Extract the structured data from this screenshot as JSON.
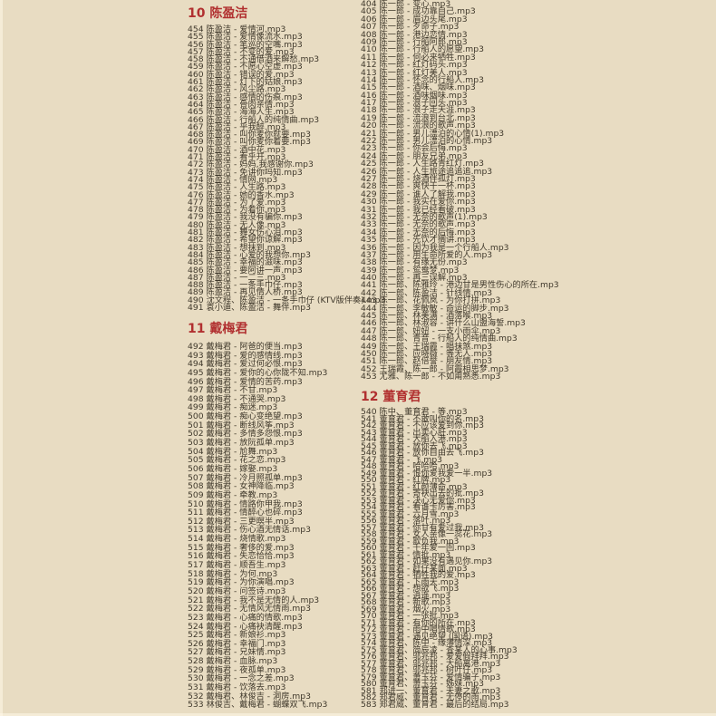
{
  "page": {
    "background": "#e8dcc2",
    "text_color": "#3f382b",
    "accent_color": "#b13030"
  },
  "sections": [
    {
      "id": "a",
      "header": {
        "number": "10",
        "title": "陈盈洁"
      },
      "items": [
        {
          "num": "454",
          "label": "陈盈洁 - 爱情河.mp3"
        },
        {
          "num": "455",
          "label": "陈盈洁 - 爱情像流水.mp3"
        },
        {
          "num": "456",
          "label": "陈盈洁 - 笔巡的空嘴.mp3"
        },
        {
          "num": "457",
          "label": "陈盈洁 - 不变的爱.mp3"
        },
        {
          "num": "458",
          "label": "陈盈洁 - 不通借酒来解愁.mp3"
        },
        {
          "num": "459",
          "label": "陈盈洁 - 不愿心空虚.mp3"
        },
        {
          "num": "460",
          "label": "陈盈洁 - 错误的爱.mp3"
        },
        {
          "num": "461",
          "label": "陈盈洁 - 灯下的姑娘.mp3"
        },
        {
          "num": "462",
          "label": "陈盈洁 - 风尘路.mp3"
        },
        {
          "num": "463",
          "label": "陈盈洁 - 感情的伤痕.mp3"
        },
        {
          "num": "464",
          "label": "陈盈洁 - 骨肉亲情.mp3"
        },
        {
          "num": "465",
          "label": "陈盈洁 - 海海人生.mp3"
        },
        {
          "num": "466",
          "label": "陈盈洁 - 行船人的纯情曲.mp3"
        },
        {
          "num": "467",
          "label": "陈盈洁 - 乎我醉.mp3"
        },
        {
          "num": "468",
          "label": "陈盈洁 - 叫你麦你就要.mp3"
        },
        {
          "num": "469",
          "label": "陈盈洁 - 叫你麦你着要.mp3"
        },
        {
          "num": "470",
          "label": "陈盈洁 - 酒中花.mp3"
        },
        {
          "num": "471",
          "label": "陈盈洁 - 看乎开.mp3"
        },
        {
          "num": "472",
          "label": "陈盈洁 - 妈妈,我感谢你.mp3"
        },
        {
          "num": "473",
          "label": "陈盈洁 - 免讲你吗知.mp3"
        },
        {
          "num": "474",
          "label": "陈盈洁 - 情网.mp3"
        },
        {
          "num": "475",
          "label": "陈盈洁 - 人生路.mp3"
        },
        {
          "num": "476",
          "label": "陈盈洁 - 她的香水.mp3"
        },
        {
          "num": "477",
          "label": "陈盈洁 - 为了爱.mp3"
        },
        {
          "num": "478",
          "label": "陈盈洁 - 为着你.mp3"
        },
        {
          "num": "479",
          "label": "陈盈洁 - 我没有骗你.mp3"
        },
        {
          "num": "480",
          "label": "陈盈洁 - 无人像.mp3"
        },
        {
          "num": "481",
          "label": "陈盈洁 - 舞女伤心泪.mp3"
        },
        {
          "num": "482",
          "label": "陈盈洁 - 希望你谅解.mp3"
        },
        {
          "num": "483",
          "label": "陈盈洁 - 想抹到.mp3"
        },
        {
          "num": "484",
          "label": "陈盈洁 - 心爱的我想你.mp3"
        },
        {
          "num": "485",
          "label": "陈盈洁 - 幸福的滋味.mp3"
        },
        {
          "num": "486",
          "label": "陈盈洁 - 要阿讲一声.mp3"
        },
        {
          "num": "487",
          "label": "陈盈洁 - 一二三.mp3"
        },
        {
          "num": "488",
          "label": "陈盈洁 - 一条手巾仔.mp3"
        },
        {
          "num": "489",
          "label": "陈盈洁 - 再见情人桥.mp3"
        },
        {
          "num": "490",
          "label": "沈文程、陈盈洁 - 一条手巾仔 (KTV版伴奏).mp3"
        },
        {
          "num": "491",
          "label": "袁小迪、陈盈洁 - 舞伴.mp3"
        }
      ]
    },
    {
      "id": "b",
      "header": {
        "number": "11",
        "title": "戴梅君"
      },
      "items": [
        {
          "num": "492",
          "label": "戴梅君 - 阿爸的便当.mp3"
        },
        {
          "num": "493",
          "label": "戴梅君 - 爱的感情线.mp3"
        },
        {
          "num": "494",
          "label": "戴梅君 - 爱过何必恨.mp3"
        },
        {
          "num": "495",
          "label": "戴梅君 - 爱你的心你陇不知.mp3"
        },
        {
          "num": "496",
          "label": "戴梅君 - 爱情的苦药.mp3"
        },
        {
          "num": "497",
          "label": "戴梅君 - 不甘.mp3"
        },
        {
          "num": "498",
          "label": "戴梅君 - 不通哭.mp3"
        },
        {
          "num": "499",
          "label": "戴梅君 - 痴迷.mp3"
        },
        {
          "num": "500",
          "label": "戴梅君 - 痴心变绝望.mp3"
        },
        {
          "num": "501",
          "label": "戴梅君 - 断线风筝.mp3"
        },
        {
          "num": "502",
          "label": "戴梅君 - 多情多怨恨.mp3"
        },
        {
          "num": "503",
          "label": "戴梅君 - 放阮孤单.mp3"
        },
        {
          "num": "504",
          "label": "戴梅君 - 尬舞.mp3"
        },
        {
          "num": "505",
          "label": "戴梅君 - 花之恋.mp3"
        },
        {
          "num": "506",
          "label": "戴梅君 - 嫁娶.mp3"
        },
        {
          "num": "507",
          "label": "戴梅君 - 冷月照孤单.mp3"
        },
        {
          "num": "508",
          "label": "戴梅君 - 女神降临.mp3"
        },
        {
          "num": "509",
          "label": "戴梅君 - 牵教.mp3"
        },
        {
          "num": "510",
          "label": "戴梅君 - 情路你甲我.mp3"
        },
        {
          "num": "511",
          "label": "戴梅君 - 情醉心也碎.mp3"
        },
        {
          "num": "512",
          "label": "戴梅君 - 三更暝半.mp3"
        },
        {
          "num": "513",
          "label": "戴梅君 - 伤心酒无情话.mp3"
        },
        {
          "num": "514",
          "label": "戴梅君 - 烧情歌.mp3"
        },
        {
          "num": "515",
          "label": "戴梅君 - 奢侈的爱.mp3"
        },
        {
          "num": "516",
          "label": "戴梅君 - 失恋恰恰.mp3"
        },
        {
          "num": "517",
          "label": "戴梅君 - 顺吾生.mp3"
        },
        {
          "num": "518",
          "label": "戴梅君 - 为何.mp3"
        },
        {
          "num": "519",
          "label": "戴梅君 - 为你演唱.mp3"
        },
        {
          "num": "520",
          "label": "戴梅君 - 问签诗.mp3"
        },
        {
          "num": "521",
          "label": "戴梅君 - 我不是无情的人.mp3"
        },
        {
          "num": "522",
          "label": "戴梅君 - 无情风无情雨.mp3"
        },
        {
          "num": "523",
          "label": "戴梅君 - 心痛的情歌.mp3"
        },
        {
          "num": "524",
          "label": "戴梅君 - 心痛袂清醒.mp3"
        },
        {
          "num": "525",
          "label": "戴梅君 - 新娘衫.mp3"
        },
        {
          "num": "526",
          "label": "戴梅君 - 幸福门.mp3"
        },
        {
          "num": "527",
          "label": "戴梅君 - 兄妹情.mp3"
        },
        {
          "num": "528",
          "label": "戴梅君 - 血脉.mp3"
        },
        {
          "num": "529",
          "label": "戴梅君 - 夜孤单.mp3"
        },
        {
          "num": "530",
          "label": "戴梅君 - 一念之差.mp3"
        },
        {
          "num": "531",
          "label": "戴梅君 - 饮落去.mp3"
        },
        {
          "num": "532",
          "label": "戴梅君、林俊吉 - 洞房.mp3"
        },
        {
          "num": "533",
          "label": "林俊吉、戴梅君 - 蝴蝶双飞.mp3"
        }
      ]
    },
    {
      "id": "c",
      "header": null,
      "items": [
        {
          "num": "404",
          "label": "陈一郎 - 变心.mp3"
        },
        {
          "num": "405",
          "label": "陈一郎 - 成功靠自己.mp3"
        },
        {
          "num": "406",
          "label": "陈一郎 - 眉边头尾.mp3"
        },
        {
          "num": "407",
          "label": "陈一郎 - 歹命子.mp3"
        },
        {
          "num": "408",
          "label": "陈一郎 - 港边恋情.mp3"
        },
        {
          "num": "409",
          "label": "陈一郎 - 行船阿郎.mp3"
        },
        {
          "num": "410",
          "label": "陈一郎 - 行船人的愿望.mp3"
        },
        {
          "num": "411",
          "label": "陈一郎 - 何必来牺牲.mp3"
        },
        {
          "num": "412",
          "label": "陈一郎 - 红灯码头.mp3"
        },
        {
          "num": "413",
          "label": "陈一郎 - 红灯美人.mp3"
        },
        {
          "num": "414",
          "label": "陈一郎 - 怀念的行船人.mp3"
        },
        {
          "num": "415",
          "label": "陈一郎 - 酒味、烟味.mp3"
        },
        {
          "num": "416",
          "label": "陈一郎 - 酒味烟味.mp3"
        },
        {
          "num": "417",
          "label": "陈一郎 - 浪子回头.mp3"
        },
        {
          "num": "418",
          "label": "陈一郎 - 浪子走天涯.mp3"
        },
        {
          "num": "419",
          "label": "陈一郎 - 流浪到台北.mp3"
        },
        {
          "num": "420",
          "label": "陈一郎 - 流浪的歌声.mp3"
        },
        {
          "num": "421",
          "label": "陈一郎 - 男儿漂泊的心情(1).mp3"
        },
        {
          "num": "422",
          "label": "陈一郎 - 男儿漂泊的心情.mp3"
        },
        {
          "num": "423",
          "label": "陈一郎 - 你会后悔.mp3"
        },
        {
          "num": "424",
          "label": "陈一郎 - 朋友兄弟.mp3"
        },
        {
          "num": "425",
          "label": "陈一郎 - 人生路青红灯.mp3"
        },
        {
          "num": "426",
          "label": "陈一郎 - 人生旅途追追追.mp3"
        },
        {
          "num": "427",
          "label": "陈一郎 - 烧酒伴孤灯.mp3"
        },
        {
          "num": "428",
          "label": "陈一郎 - 爽快干一杯.mp3"
        },
        {
          "num": "429",
          "label": "陈一郎 - 谁人了解我.mp3"
        },
        {
          "num": "430",
          "label": "陈一郎 - 我实在爱你.mp3"
        },
        {
          "num": "431",
          "label": "陈一郎 - 我已经看破.mp3"
        },
        {
          "num": "432",
          "label": "陈一郎 - 无奈的歌声(1).mp3"
        },
        {
          "num": "433",
          "label": "陈一郎 - 无奈的歌声.mp3"
        },
        {
          "num": "434",
          "label": "陈一郎 - 无奈的后悔.mp3"
        },
        {
          "num": "435",
          "label": "陈一郎 - 先饮才搁讲.mp3"
        },
        {
          "num": "436",
          "label": "陈一郎 - 因为我是一个行船人.mp3"
        },
        {
          "num": "437",
          "label": "陈一郎 - 用生命所爱的人.mp3"
        },
        {
          "num": "438",
          "label": "陈一郎 - 有缘无份.mp3"
        },
        {
          "num": "439",
          "label": "陈一郎 - 鸳鸯梦.mp3"
        },
        {
          "num": "440",
          "label": "陈一郎 - 再三误解.mp3"
        },
        {
          "num": "441",
          "label": "陈一郎、陈雅玲 - 港边甘是男性伤心的所在.mp3"
        },
        {
          "num": "442",
          "label": "陈一郎、陈盈洁 - 针线情.mp3"
        },
        {
          "num": "443",
          "label": "陈一郎、花佩岚 - 为你打拼.mp3"
        },
        {
          "num": "444",
          "label": "陈一郎、李敏敏 - 命运的脚步.mp3"
        },
        {
          "num": "445",
          "label": "陈一郎、林美满 - 酒落喉.mp3"
        },
        {
          "num": "446",
          "label": "陈一郎、林淑容 - 讲什么山盟海誓.mp3"
        },
        {
          "num": "447",
          "label": "陈一郎、妞妞 - 一支小雨伞.mp3"
        },
        {
          "num": "448",
          "label": "陈一郎、青音 - 行船人的纯情曲.mp3"
        },
        {
          "num": "449",
          "label": "陈一郎、王瑞霞 - 唱抹煞.mp3"
        },
        {
          "num": "450",
          "label": "陈一郎、应晓薇 - 等无人.mp3"
        },
        {
          "num": "451",
          "label": "陈一郎、赵倍誉 - 朋友情.mp3"
        },
        {
          "num": "452",
          "label": "王瑞霞、陈一郎 - 阿霞相思梦.mp3"
        },
        {
          "num": "453",
          "label": "尤雅、陈一郎 - 不如甭熟悉.mp3"
        }
      ]
    },
    {
      "id": "d",
      "header": {
        "number": "12",
        "title": "董育君"
      },
      "items": [
        {
          "num": "540",
          "label": "陈中、董育君 - 等.mp3"
        },
        {
          "num": "541",
          "label": "董育君 - 不敢叫你的名.mp3"
        },
        {
          "num": "542",
          "label": "董育君 - 不应该爱到你.mp3"
        },
        {
          "num": "543",
          "label": "董育君 - 出卖心肝.mp3"
        },
        {
          "num": "544",
          "label": "董育君 - 大船入港.mp3"
        },
        {
          "num": "545",
          "label": "董育君 - 放你去飞.mp3"
        },
        {
          "num": "546",
          "label": "董育君 - 放你自由去飞.mp3"
        },
        {
          "num": "547",
          "label": "董育君 - 飞.mp3"
        },
        {
          "num": "548",
          "label": "董育君 - 哈哈哈.mp3"
        },
        {
          "num": "549",
          "label": "董育君 - 恨你爱我爱一半.mp3"
        },
        {
          "num": "550",
          "label": "董育君 - 红牌.mp3"
        },
        {
          "num": "551",
          "label": "董育君 - 红颜薄命.mp3"
        },
        {
          "num": "552",
          "label": "董育君 - 寄袂出去的批.mp3"
        },
        {
          "num": "553",
          "label": "董育君 - 决心无爱你.mp3"
        },
        {
          "num": "554",
          "label": "董育君 - 看谁卡厉害.mp3"
        },
        {
          "num": "555",
          "label": "董育君 - 六月雪.mp3"
        },
        {
          "num": "556",
          "label": "董育君 - 落叶.mp3"
        },
        {
          "num": "557",
          "label": "董育君 - 你甘有爱过我.mp3"
        },
        {
          "num": "558",
          "label": "董育君 - 女人亲像一蕊花.mp3"
        },
        {
          "num": "559",
          "label": "董育君 - 欺负我.mp3"
        },
        {
          "num": "560",
          "label": "董育君 - 千年爱一回.mp3"
        },
        {
          "num": "561",
          "label": "董育君 - 情批.mp3"
        },
        {
          "num": "562",
          "label": "董育君 - 如果没有遇见你.mp3"
        },
        {
          "num": "563",
          "label": "董育君 - 赶仔某面.mp3"
        },
        {
          "num": "564",
          "label": "董育君 - 牺牲我的爱.mp3"
        },
        {
          "num": "565",
          "label": "董育君 - 下雨天.mp3"
        },
        {
          "num": "566",
          "label": "董育君 - 想欲飞.mp3"
        },
        {
          "num": "567",
          "label": "董育君 - 逍遥.mp3"
        },
        {
          "num": "568",
          "label": "董育君 - 新歌.mp3"
        },
        {
          "num": "569",
          "label": "董育君 - 烟火.mp3"
        },
        {
          "num": "570",
          "label": "董育君 - 一张批.mp3"
        },
        {
          "num": "571",
          "label": "董育君 - 有你的所在.mp3"
        },
        {
          "num": "572",
          "label": "董育君 - 雨中唱情歌.mp3"
        },
        {
          "num": "573",
          "label": "董育君 - 遇见绝望 (国语).mp3"
        },
        {
          "num": "574",
          "label": "董育君、陈中 - 缘薄情深.mp3"
        },
        {
          "num": "575",
          "label": "董育君、简辰凌 - 查某人的心事.mp3"
        },
        {
          "num": "576",
          "label": "董育君、邬兆邦 - 爱爱假拜拜.mp3"
        },
        {
          "num": "577",
          "label": "董育君、邬兆邦 - 大船离港.mp3"
        },
        {
          "num": "578",
          "label": "董育君、邬兆邦 - 树叶仔.mp3"
        },
        {
          "num": "579",
          "label": "董育君、萧玉芬 - 爱情骗子.mp3"
        },
        {
          "num": "580",
          "label": "董育君、萧玉芬 - 姊妹.mp3"
        },
        {
          "num": "581",
          "label": "郑进一、董育君 - 夫妻之歌.mp3"
        },
        {
          "num": "582",
          "label": "郑君威、董育君 - 无停的雨.mp3"
        },
        {
          "num": "583",
          "label": "郑君威、董育君 - 最后的结局.mp3"
        }
      ]
    }
  ]
}
